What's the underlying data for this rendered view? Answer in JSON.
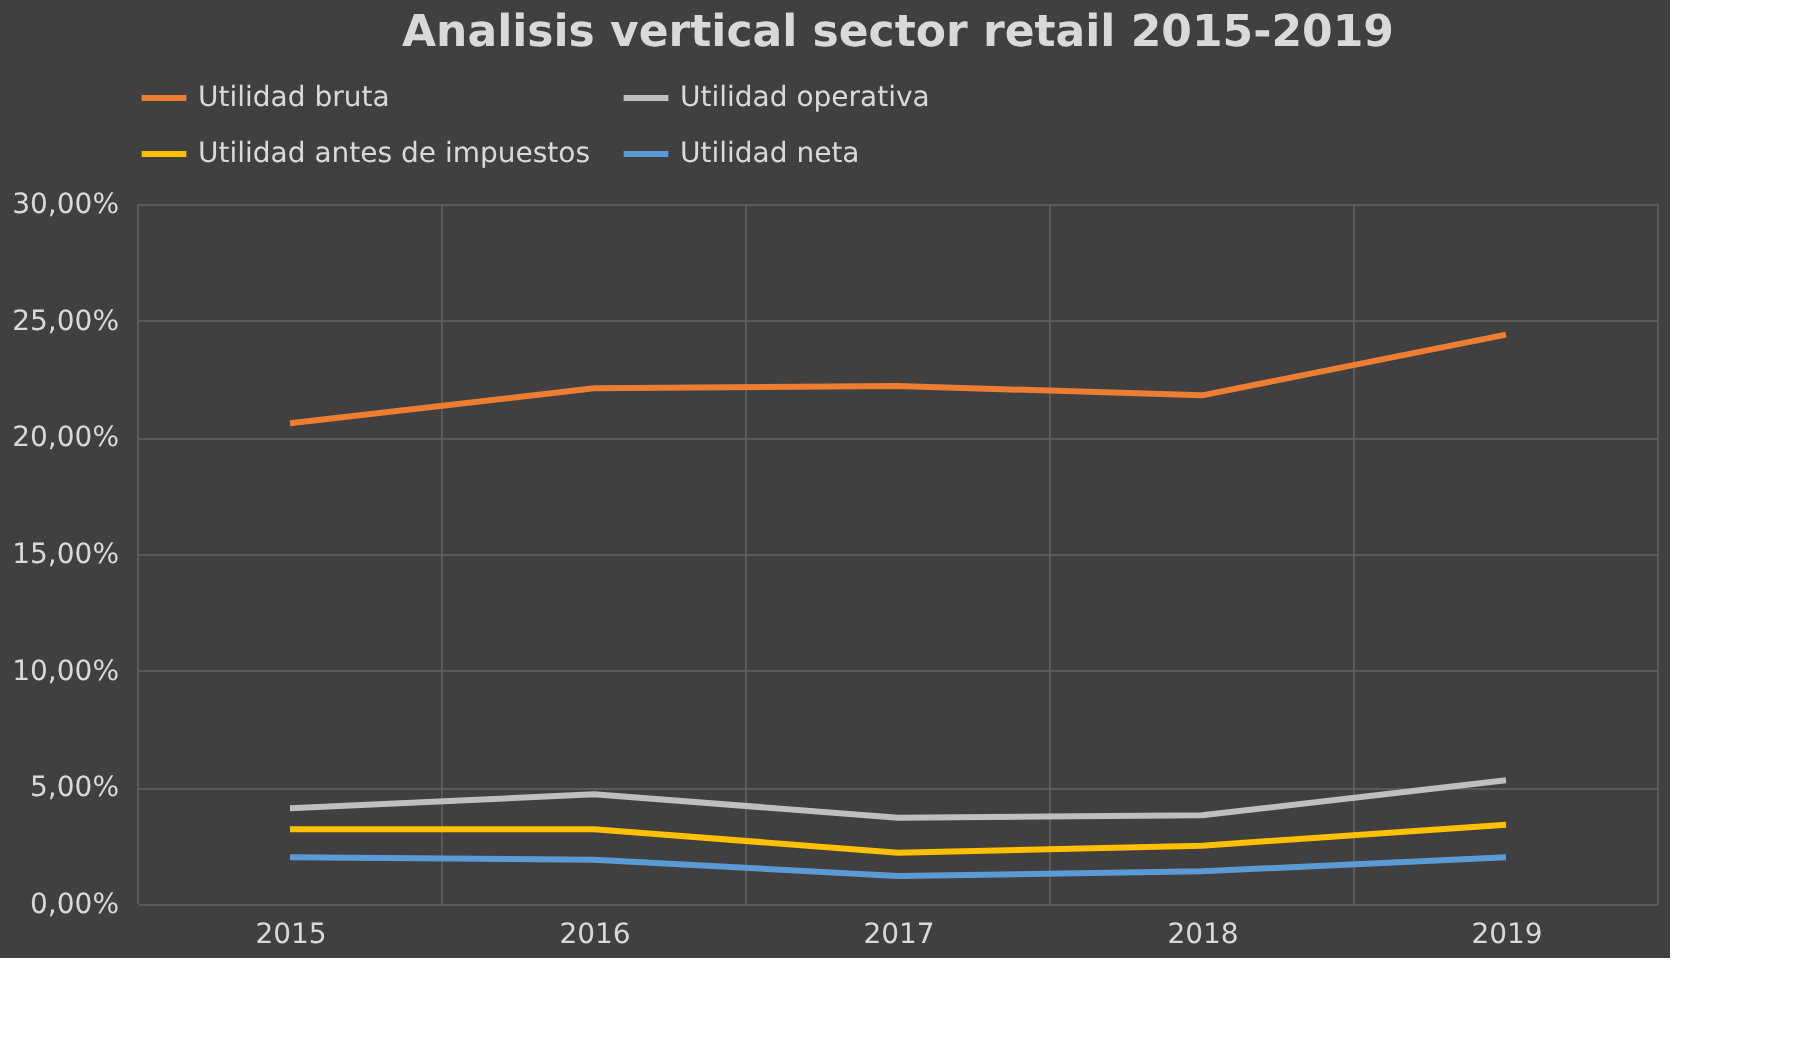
{
  "chart_data": {
    "type": "line",
    "title": "Analisis vertical sector retail 2015-2019",
    "categories": [
      "2015",
      "2016",
      "2017",
      "2018",
      "2019"
    ],
    "series": [
      {
        "name": "Utilidad bruta",
        "color": "#ed7d31",
        "values": [
          20.6,
          22.1,
          22.2,
          21.8,
          24.4
        ]
      },
      {
        "name": "Utilidad operativa",
        "color": "#bfbfbf",
        "values": [
          4.1,
          4.7,
          3.7,
          3.8,
          5.3
        ]
      },
      {
        "name": "Utilidad antes de impuestos",
        "color": "#ffc000",
        "values": [
          3.2,
          3.2,
          2.2,
          2.5,
          3.4
        ]
      },
      {
        "name": "Utilidad neta",
        "color": "#5b9bd5",
        "values": [
          2.0,
          1.9,
          1.2,
          1.4,
          2.0
        ]
      }
    ],
    "ylim": [
      0,
      30
    ],
    "yticks": [
      {
        "value": 0,
        "label": "0,00%"
      },
      {
        "value": 5,
        "label": "5,00%"
      },
      {
        "value": 10,
        "label": "10,00%"
      },
      {
        "value": 15,
        "label": "15,00%"
      },
      {
        "value": 20,
        "label": "20,00%"
      },
      {
        "value": 25,
        "label": "25,00%"
      },
      {
        "value": 30,
        "label": "30,00%"
      }
    ],
    "grid": true,
    "legend": "top",
    "marker": "none",
    "line_style": "solid"
  }
}
